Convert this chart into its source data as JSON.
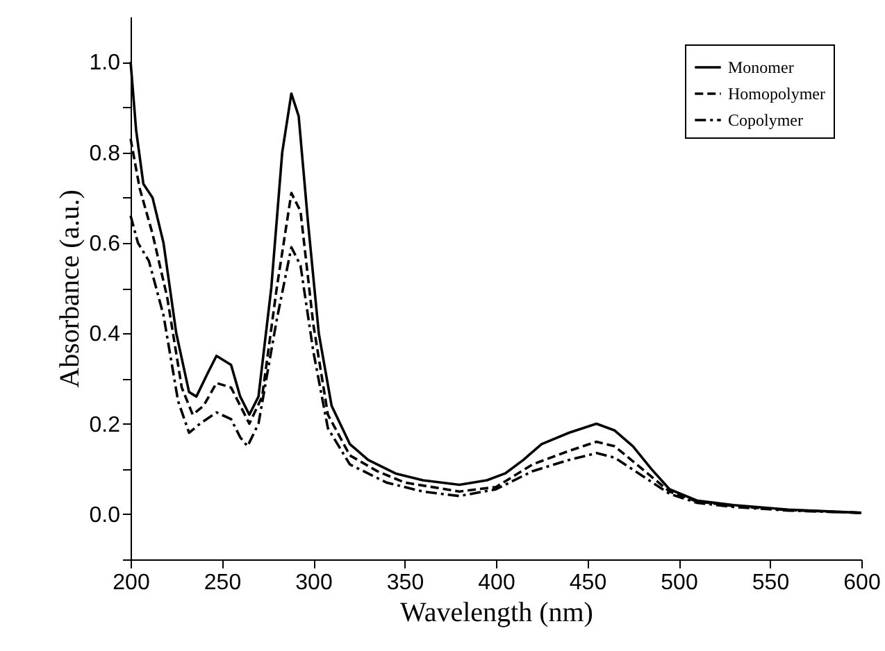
{
  "chart_data": {
    "type": "line",
    "xlabel": "Wavelength (nm)",
    "ylabel": "Absorbance (a.u.)",
    "xlim": [
      200,
      600
    ],
    "xticks": [
      200,
      250,
      300,
      350,
      400,
      450,
      500,
      550,
      600
    ],
    "ylim": [
      -0.1,
      1.1
    ],
    "yticks": [
      {
        "value": -0.1,
        "label": null
      },
      {
        "value": 0,
        "label": "0.0"
      },
      {
        "value": 0.1,
        "label": null
      },
      0.2,
      {
        "value": 0.3,
        "label": null
      },
      0.4,
      {
        "value": 0.5,
        "label": null
      },
      0.6,
      {
        "value": 0.7,
        "label": null
      },
      0.8,
      {
        "value": 0.9,
        "label": null
      },
      {
        "value": 1.0,
        "label": "1.0"
      }
    ],
    "grid": false,
    "legend": "top right",
    "marker": "none",
    "series": [
      {
        "name": "Monomer",
        "color": "#000000",
        "line_style": "solid",
        "x": [
          200,
          203,
          207,
          212,
          218,
          225,
          232,
          236,
          242,
          247,
          255,
          260,
          265,
          270,
          277,
          283,
          288,
          292,
          297,
          303,
          310,
          320,
          330,
          345,
          360,
          380,
          395,
          405,
          415,
          425,
          440,
          455,
          465,
          475,
          485,
          495,
          510,
          530,
          560,
          600
        ],
        "values": [
          1.0,
          0.85,
          0.73,
          0.7,
          0.6,
          0.4,
          0.27,
          0.26,
          0.31,
          0.35,
          0.33,
          0.26,
          0.22,
          0.26,
          0.5,
          0.8,
          0.93,
          0.88,
          0.65,
          0.4,
          0.24,
          0.155,
          0.12,
          0.09,
          0.075,
          0.065,
          0.075,
          0.09,
          0.12,
          0.155,
          0.18,
          0.2,
          0.185,
          0.15,
          0.1,
          0.055,
          0.03,
          0.02,
          0.01,
          0.003
        ]
      },
      {
        "name": "Homopolymer",
        "color": "#000000",
        "line_style": "dashed",
        "x": [
          200,
          205,
          212,
          220,
          228,
          234,
          240,
          247,
          255,
          260,
          265,
          272,
          280,
          288,
          293,
          300,
          308,
          320,
          335,
          350,
          380,
          400,
          420,
          440,
          455,
          465,
          480,
          495,
          510,
          530,
          560,
          600
        ],
        "values": [
          0.83,
          0.72,
          0.62,
          0.48,
          0.28,
          0.22,
          0.24,
          0.29,
          0.28,
          0.24,
          0.2,
          0.26,
          0.5,
          0.71,
          0.67,
          0.42,
          0.22,
          0.13,
          0.095,
          0.07,
          0.05,
          0.06,
          0.11,
          0.14,
          0.16,
          0.15,
          0.1,
          0.05,
          0.028,
          0.018,
          0.009,
          0.003
        ]
      },
      {
        "name": "Copolymer",
        "color": "#000000",
        "line_style": "dashdot",
        "x": [
          200,
          204,
          210,
          218,
          226,
          232,
          238,
          247,
          255,
          260,
          264,
          270,
          280,
          288,
          293,
          300,
          308,
          320,
          340,
          360,
          380,
          400,
          420,
          440,
          455,
          465,
          480,
          495,
          510,
          530,
          560,
          600
        ],
        "values": [
          0.66,
          0.6,
          0.56,
          0.44,
          0.25,
          0.18,
          0.2,
          0.225,
          0.21,
          0.17,
          0.15,
          0.2,
          0.43,
          0.59,
          0.55,
          0.36,
          0.19,
          0.11,
          0.07,
          0.05,
          0.04,
          0.055,
          0.095,
          0.12,
          0.135,
          0.125,
          0.085,
          0.045,
          0.025,
          0.016,
          0.008,
          0.003
        ]
      }
    ]
  }
}
